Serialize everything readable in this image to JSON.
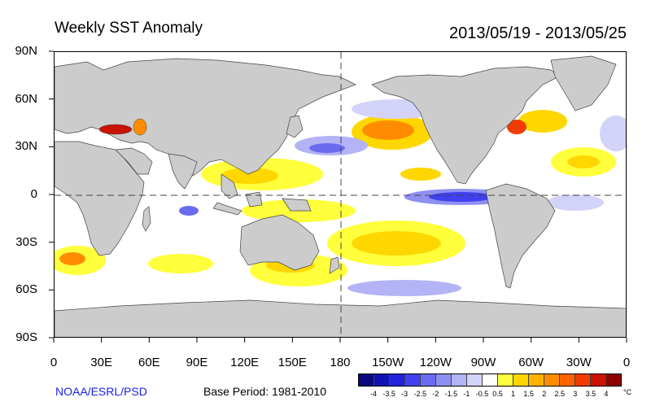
{
  "title": "Weekly SST Anomaly",
  "date_range": "2013/05/19 - 2013/05/25",
  "credit": "NOAA/ESRL/PSD",
  "base_period": "Base Period: 1981-2010",
  "unit": "°C",
  "lat_labels": [
    "90N",
    "60N",
    "30N",
    "0",
    "30S",
    "60S",
    "90S"
  ],
  "lon_labels": [
    "0",
    "30E",
    "60E",
    "90E",
    "120E",
    "150E",
    "180",
    "150W",
    "120W",
    "90W",
    "60W",
    "30W",
    "0"
  ],
  "colorbar": {
    "labels": [
      "-4",
      "-3.5",
      "-3",
      "-2.5",
      "-2",
      "-1.5",
      "-1",
      "-0.5",
      "0.5",
      "1",
      "1.5",
      "2",
      "2.5",
      "3",
      "3.5",
      "4"
    ],
    "colors": [
      "#0a0a7c",
      "#1212b4",
      "#2323dc",
      "#4040f0",
      "#6b6bf0",
      "#8f8ff2",
      "#b3b3f5",
      "#d3d3f9",
      "#ffffff",
      "#ffff3c",
      "#ffd700",
      "#ffb400",
      "#ff8c00",
      "#ff6400",
      "#f03c00",
      "#c81400",
      "#8c0000"
    ]
  }
}
